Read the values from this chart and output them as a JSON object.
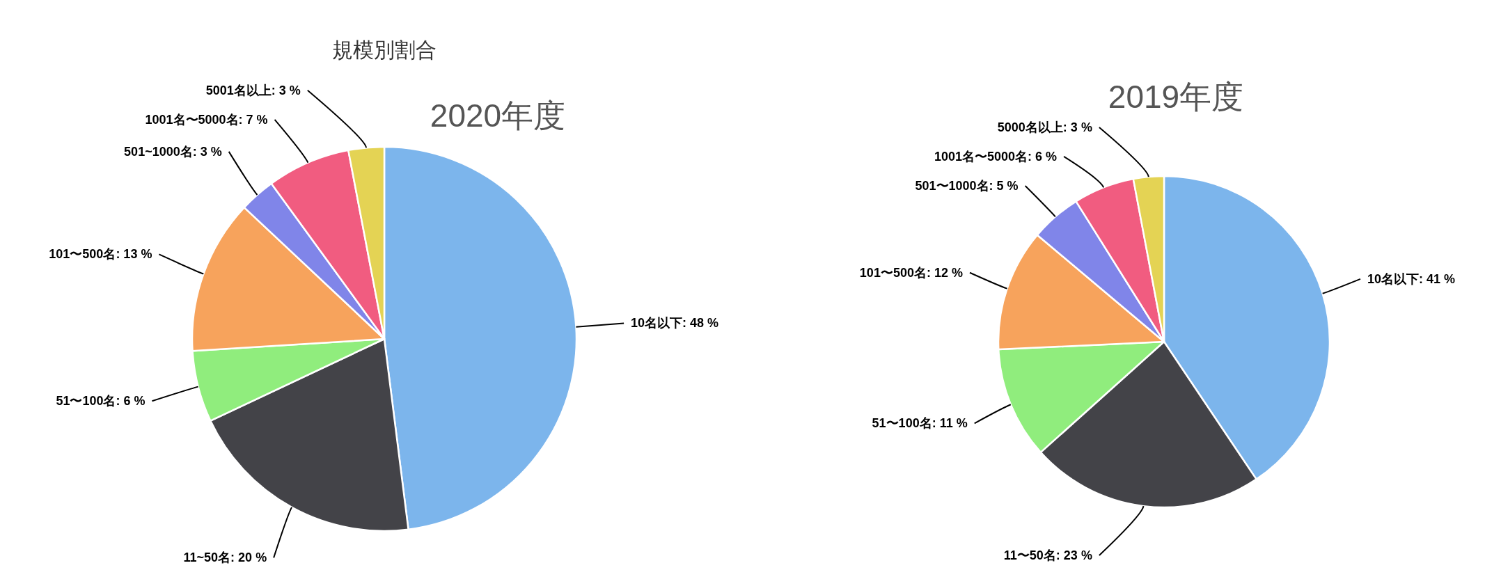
{
  "chart_data": [
    {
      "type": "pie",
      "title": "規模別割合",
      "subtitle": "2020年度",
      "categories": [
        "10名以下",
        "11~50名",
        "51〜100名",
        "101〜500名",
        "501~1000名",
        "1001名〜5000名",
        "5001名以上"
      ],
      "values": [
        48,
        20,
        6,
        13,
        3,
        7,
        3
      ],
      "value_labels": [
        "48 %",
        "20 %",
        "6 %",
        "13 %",
        "3 %",
        "7 %",
        "3 %"
      ],
      "colors": [
        "#7cb5ec",
        "#434348",
        "#90ed7d",
        "#f7a35c",
        "#8085e9",
        "#f15c80",
        "#e4d354"
      ]
    },
    {
      "type": "pie",
      "title": "2019年度",
      "categories": [
        "10名以下",
        "11〜50名",
        "51〜100名",
        "101〜500名",
        "501〜1000名",
        "1001名〜5000名",
        "5000名以上"
      ],
      "values": [
        41,
        23,
        11,
        12,
        5,
        6,
        3
      ],
      "value_labels": [
        "41 %",
        "23 %",
        "11 %",
        "12 %",
        "5 %",
        "6 %",
        "3 %"
      ],
      "colors": [
        "#7cb5ec",
        "#434348",
        "#90ed7d",
        "#f7a35c",
        "#8085e9",
        "#f15c80",
        "#e4d354"
      ]
    }
  ]
}
